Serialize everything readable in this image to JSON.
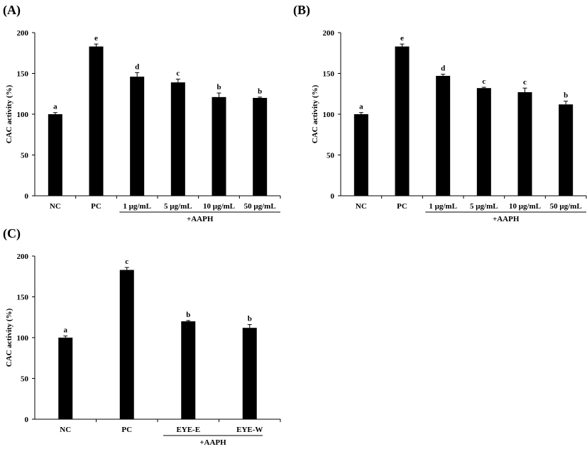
{
  "chart_data": [
    {
      "type": "bar",
      "panel_label": "(A)",
      "ylabel": "CAC activity (%)",
      "ylim": [
        0,
        200
      ],
      "yticks": [
        "0",
        "50",
        "100",
        "150",
        "200"
      ],
      "categories": [
        "NC",
        "PC",
        "1 μg/mL",
        "5 μg/mL",
        "10 μg/mL",
        "50 μg/mL"
      ],
      "values": [
        100,
        183,
        146,
        139,
        121,
        120
      ],
      "errors": [
        2,
        3,
        5,
        4,
        5,
        1
      ],
      "letters": [
        "a",
        "e",
        "d",
        "c",
        "b",
        "b"
      ],
      "group_label": "+AAPH",
      "group_range": [
        2,
        5
      ]
    },
    {
      "type": "bar",
      "panel_label": "(B)",
      "ylabel": "CAC activity (%)",
      "ylim": [
        0,
        200
      ],
      "yticks": [
        "0",
        "50",
        "100",
        "150",
        "200"
      ],
      "categories": [
        "NC",
        "PC",
        "1 μg/mL",
        "5 μg/mL",
        "10 μg/mL",
        "50 μg/mL"
      ],
      "values": [
        100,
        183,
        147,
        132,
        127,
        112
      ],
      "errors": [
        2,
        3,
        2,
        1,
        5,
        4
      ],
      "letters": [
        "a",
        "e",
        "d",
        "c",
        "c",
        "b"
      ],
      "group_label": "+AAPH",
      "group_range": [
        2,
        5
      ]
    },
    {
      "type": "bar",
      "panel_label": "(C)",
      "ylabel": "CAC activity (%)",
      "ylim": [
        0,
        200
      ],
      "yticks": [
        "0",
        "50",
        "100",
        "150",
        "200"
      ],
      "categories": [
        "NC",
        "PC",
        "EYE-E",
        "EYE-W"
      ],
      "values": [
        100,
        183,
        120,
        112
      ],
      "errors": [
        2,
        3,
        1,
        4
      ],
      "letters": [
        "a",
        "c",
        "b",
        "b"
      ],
      "group_label": "+AAPH",
      "group_range": [
        2,
        3
      ]
    }
  ]
}
